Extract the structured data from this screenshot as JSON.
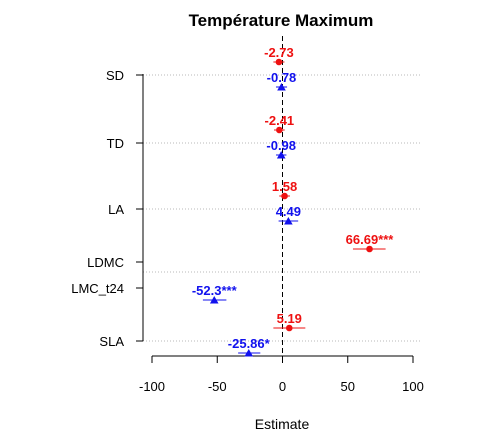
{
  "chart_data": {
    "type": "scatter",
    "title": "Température Maximum",
    "xlabel": "Estimate",
    "ylabel": "",
    "xlim": [
      -100,
      100
    ],
    "xticks": [
      -100,
      -50,
      0,
      50,
      100
    ],
    "x_tick_labels": [
      "-100",
      "-50",
      "0",
      "50",
      "100"
    ],
    "zero_line": true,
    "grid": "dotted horizontal",
    "categories": [
      "SD",
      "TD",
      "LA",
      "LDMC",
      "LMC_t24",
      "SLA"
    ],
    "series": [
      {
        "marker": "circle",
        "color": "#ee1111",
        "points": [
          {
            "category": "SD",
            "estimate": -2.73,
            "low": -7,
            "high": 1.5,
            "label": "-2.73"
          },
          {
            "category": "TD",
            "estimate": -2.41,
            "low": -6.5,
            "high": 1.7,
            "label": "-2.41"
          },
          {
            "category": "LA",
            "estimate": 1.58,
            "low": -2.5,
            "high": 5.7,
            "label": "1.58"
          },
          {
            "category": "LDMC",
            "estimate": 66.69,
            "low": 54,
            "high": 79,
            "label": "66.69***"
          },
          {
            "category": "SLA",
            "estimate": 5.19,
            "low": -7,
            "high": 17.5,
            "label": "5.19"
          }
        ]
      },
      {
        "marker": "triangle",
        "color": "#1111ee",
        "points": [
          {
            "category": "SD",
            "estimate": -0.78,
            "low": -5,
            "high": 3.5,
            "label": "-0.78"
          },
          {
            "category": "TD",
            "estimate": -0.98,
            "low": -5,
            "high": 3,
            "label": "-0.98"
          },
          {
            "category": "LA",
            "estimate": 4.49,
            "low": -3,
            "high": 12,
            "label": "4.49"
          },
          {
            "category": "LMC_t24",
            "estimate": -52.3,
            "low": -61,
            "high": -43,
            "label": "-52.3***"
          },
          {
            "category": "SLA",
            "estimate": -25.86,
            "low": -34,
            "high": -17,
            "label": "-25.86*"
          }
        ]
      }
    ]
  }
}
